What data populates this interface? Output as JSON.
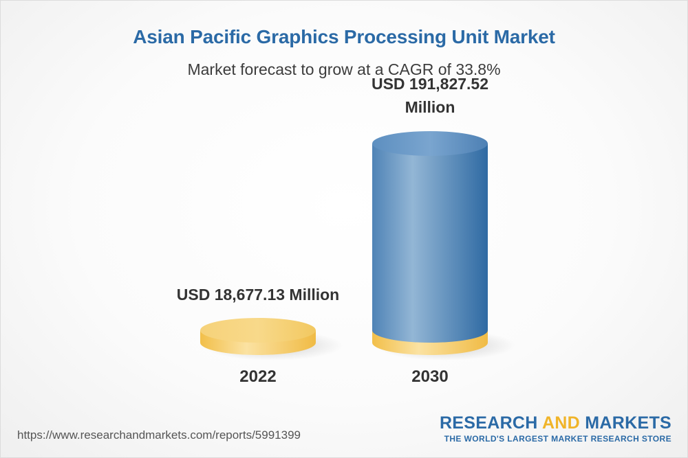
{
  "title": "Asian Pacific Graphics Processing Unit Market",
  "subtitle": "Market forecast to grow at a CAGR of 33.8%",
  "chart_data": {
    "type": "bar",
    "categories": [
      "2022",
      "2030"
    ],
    "values": [
      18677.13,
      191827.52
    ],
    "value_labels": [
      "USD 18,677.13 Million",
      "USD 191,827.52 Million"
    ],
    "unit": "USD Million",
    "cagr": "33.8%",
    "colors": {
      "base": "#f5c95c",
      "bar": "#5b8fbd"
    }
  },
  "labels": {
    "v2022": "USD 18,677.13 Million",
    "v2030_line1": "USD 191,827.52",
    "v2030_line2": "Million",
    "x2022": "2022",
    "x2030": "2030"
  },
  "footer": {
    "url": "https://www.researchandmarkets.com/reports/5991399",
    "logo_research": "RESEARCH ",
    "logo_and": "AND",
    "logo_markets": " MARKETS",
    "logo_tagline": "THE WORLD'S LARGEST MARKET RESEARCH STORE"
  }
}
